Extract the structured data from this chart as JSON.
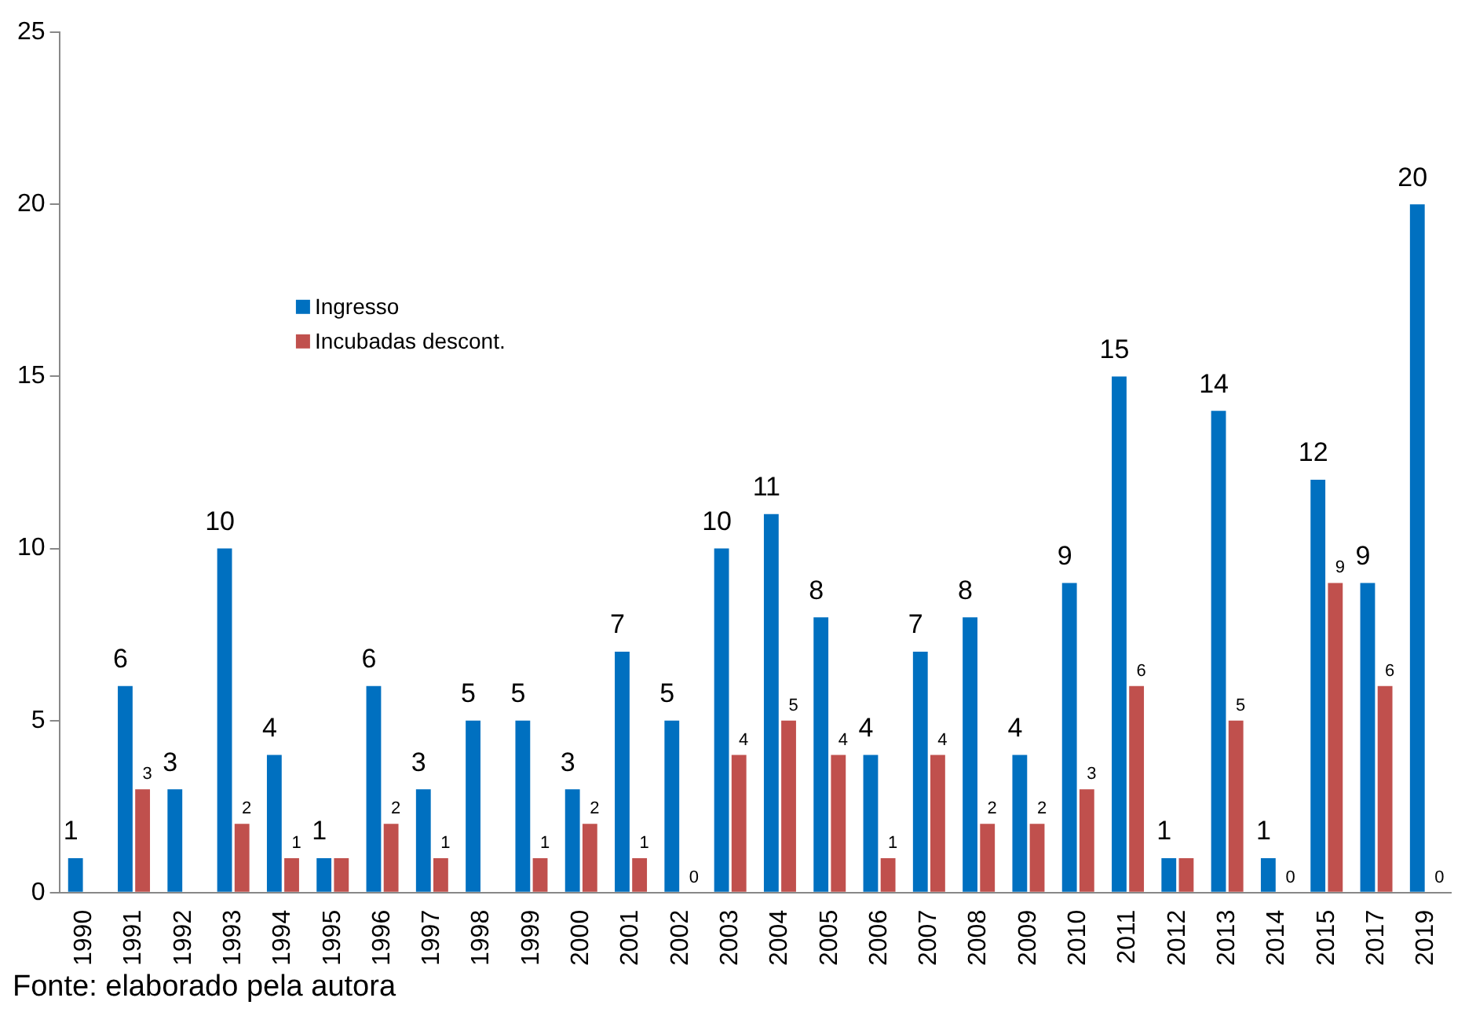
{
  "chart_data": {
    "type": "bar",
    "categories": [
      "1990",
      "1991",
      "1992",
      "1993",
      "1994",
      "1995",
      "1996",
      "1997",
      "1998",
      "1999",
      "2000",
      "2001",
      "2002",
      "2003",
      "2004",
      "2005",
      "2006",
      "2007",
      "2008",
      "2009",
      "2010",
      "2011",
      "2012",
      "2013",
      "2014",
      "2015",
      "2017",
      "2019"
    ],
    "series": [
      {
        "name": "Ingresso",
        "color": "#0070c0",
        "values": [
          1,
          6,
          3,
          10,
          4,
          1,
          6,
          3,
          5,
          5,
          3,
          7,
          5,
          10,
          11,
          8,
          4,
          7,
          8,
          4,
          9,
          15,
          1,
          14,
          1,
          12,
          9,
          20
        ],
        "value_labels": [
          "1",
          "6",
          "3",
          "10",
          "4",
          "1",
          "6",
          "3",
          "5",
          "5",
          "3",
          "7",
          "5",
          "10",
          "11",
          "8",
          "4",
          "7",
          "8",
          "4",
          "9",
          "15",
          "1",
          "14",
          "1",
          "12",
          "9",
          "20"
        ]
      },
      {
        "name": "Incubadas descont.",
        "color": "#c0504d",
        "values": [
          null,
          3,
          null,
          2,
          1,
          1,
          2,
          1,
          null,
          1,
          2,
          1,
          0,
          4,
          5,
          4,
          1,
          4,
          2,
          2,
          3,
          6,
          1,
          5,
          0,
          9,
          6,
          0
        ],
        "value_labels": [
          null,
          "3",
          null,
          "2",
          "1",
          null,
          "2",
          "1",
          null,
          "1",
          "2",
          "1",
          "0",
          "4",
          "5",
          "4",
          "1",
          "4",
          "2",
          "2",
          "3",
          "6",
          null,
          "5",
          "0",
          "9",
          "6",
          "0"
        ]
      }
    ],
    "ylim": [
      0,
      25
    ],
    "yticks": [
      0,
      5,
      10,
      15,
      20,
      25
    ],
    "grid": false,
    "legend": "top left",
    "annotations": [
      "Fonte: elaborado pela autora"
    ]
  }
}
